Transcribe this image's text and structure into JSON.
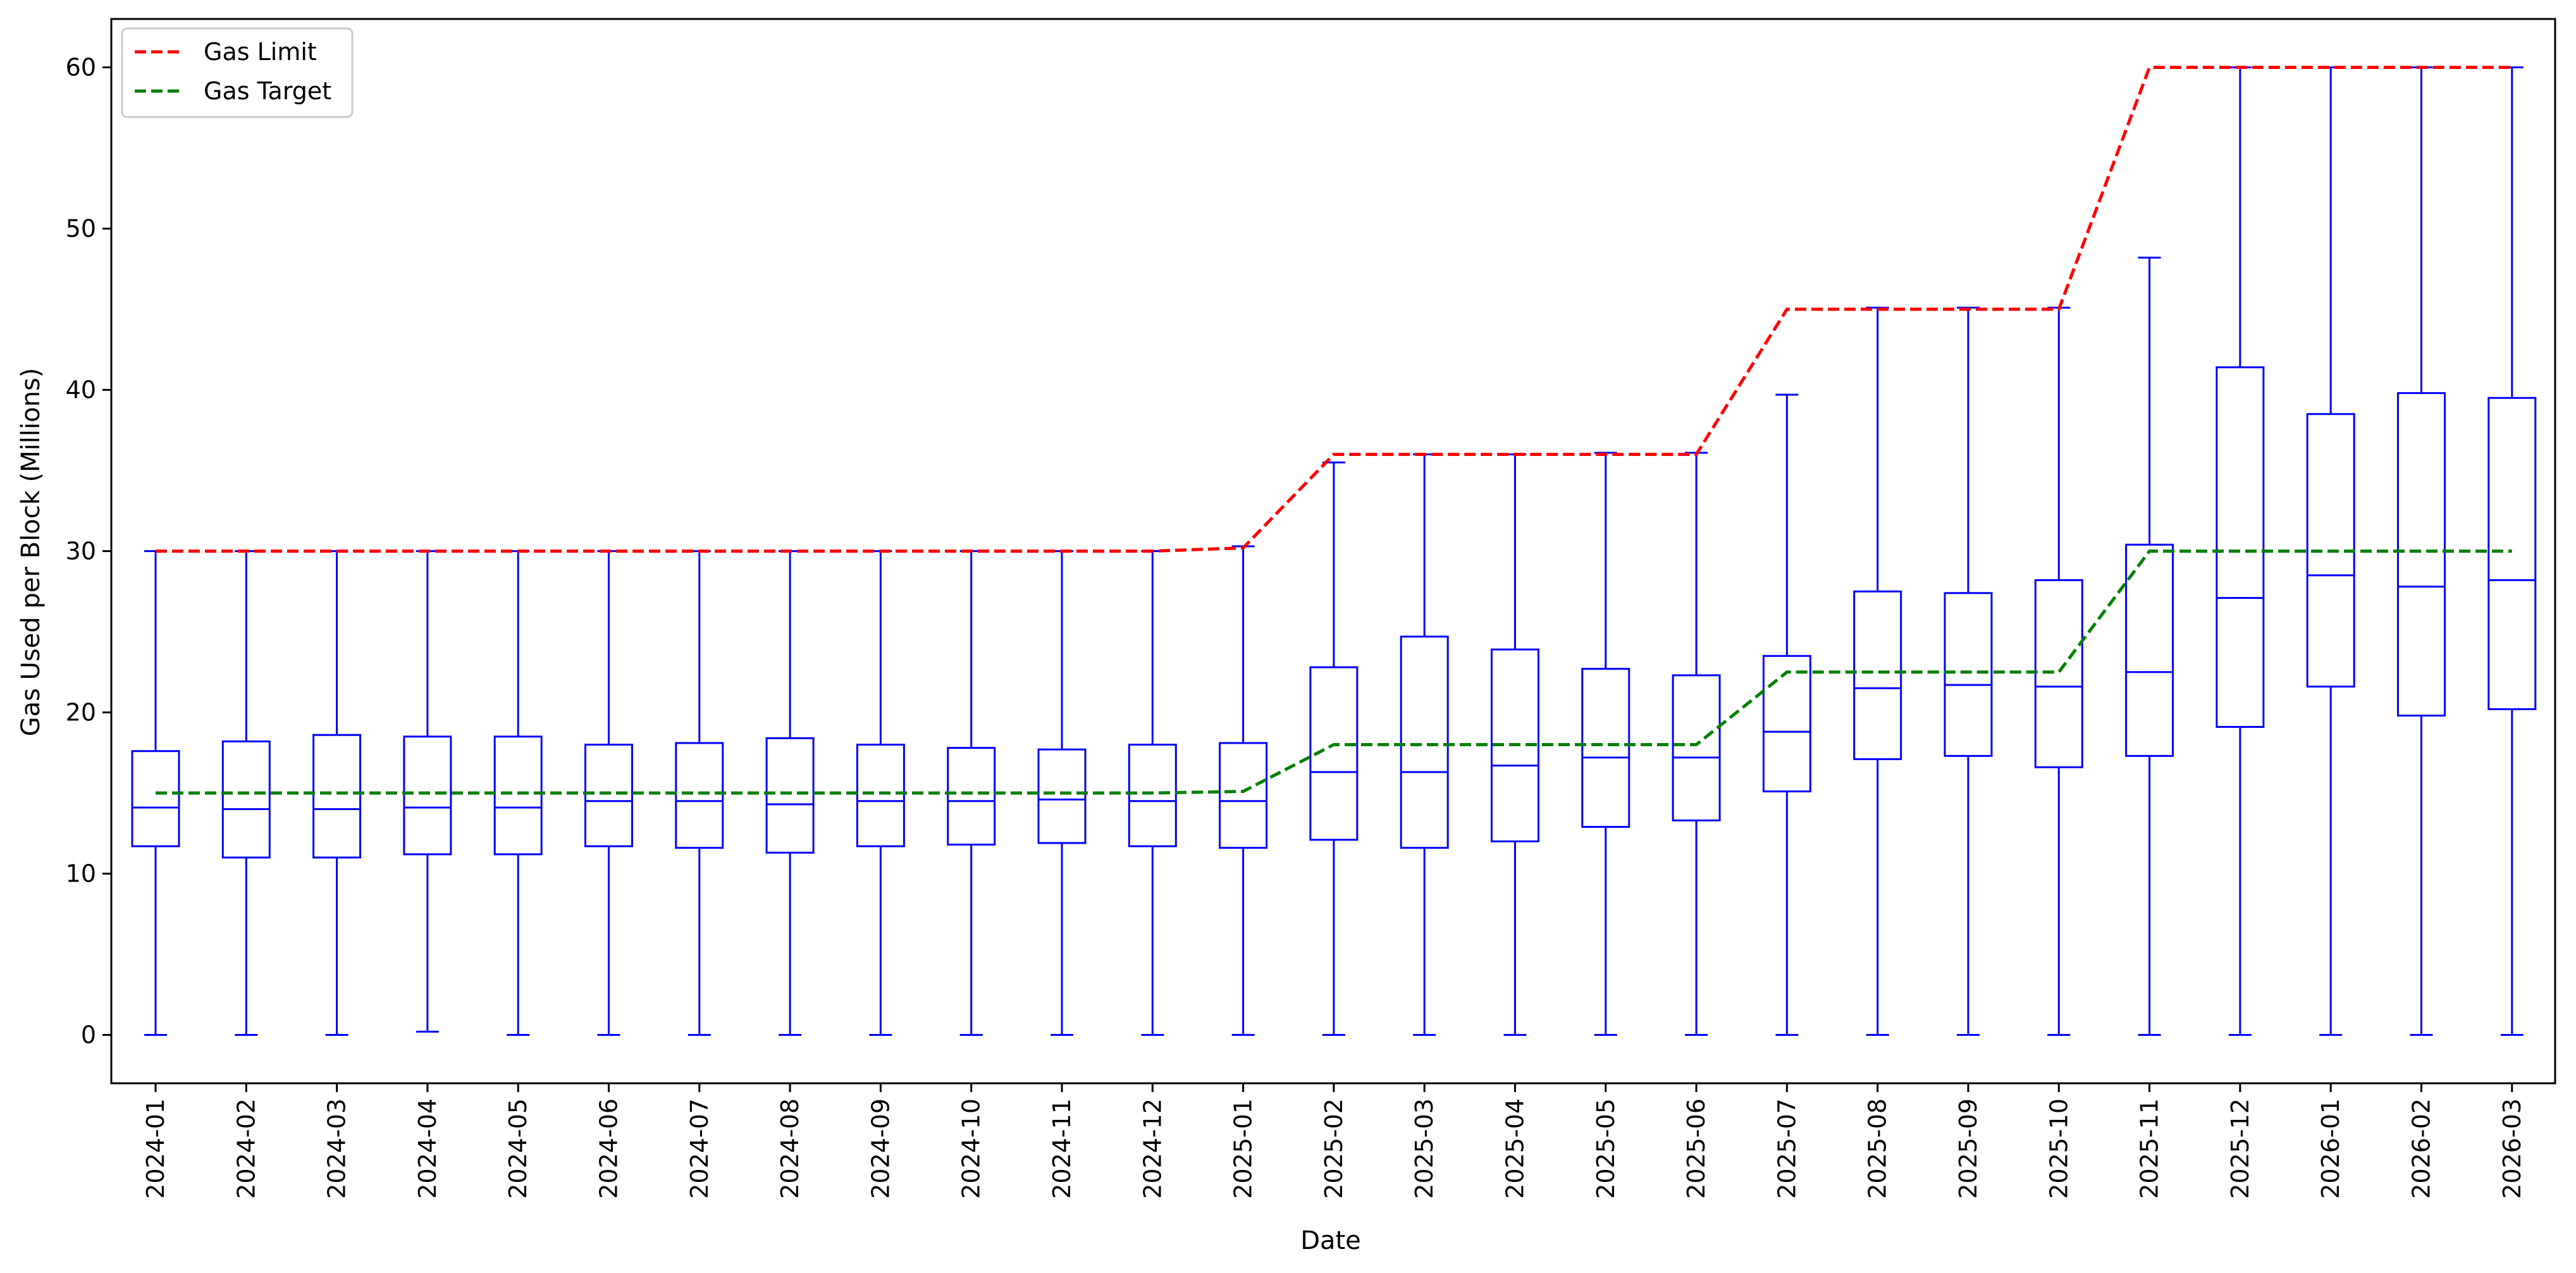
{
  "chart_data": {
    "type": "box",
    "xlabel": "Date",
    "ylabel": "Gas Used per Block (Millions)",
    "ylim": [
      -3,
      63
    ],
    "yticks": [
      0,
      10,
      20,
      30,
      40,
      50,
      60
    ],
    "categories": [
      "2024-01",
      "2024-02",
      "2024-03",
      "2024-04",
      "2024-05",
      "2024-06",
      "2024-07",
      "2024-08",
      "2024-09",
      "2024-10",
      "2024-11",
      "2024-12",
      "2025-01",
      "2025-02",
      "2025-03",
      "2025-04",
      "2025-05",
      "2025-06",
      "2025-07",
      "2025-08",
      "2025-09",
      "2025-10",
      "2025-11",
      "2025-12",
      "2026-01",
      "2026-02",
      "2026-03"
    ],
    "boxes": [
      {
        "whislo": 0,
        "q1": 11.7,
        "med": 14.1,
        "q3": 17.6,
        "whishi": 30.0
      },
      {
        "whislo": 0,
        "q1": 11.0,
        "med": 14.0,
        "q3": 18.2,
        "whishi": 30.0
      },
      {
        "whislo": 0,
        "q1": 11.0,
        "med": 14.0,
        "q3": 18.6,
        "whishi": 30.0
      },
      {
        "whislo": 0.2,
        "q1": 11.2,
        "med": 14.1,
        "q3": 18.5,
        "whishi": 30.0
      },
      {
        "whislo": 0,
        "q1": 11.2,
        "med": 14.1,
        "q3": 18.5,
        "whishi": 30.0
      },
      {
        "whislo": 0,
        "q1": 11.7,
        "med": 14.5,
        "q3": 18.0,
        "whishi": 30.0
      },
      {
        "whislo": 0,
        "q1": 11.6,
        "med": 14.5,
        "q3": 18.1,
        "whishi": 30.0
      },
      {
        "whislo": 0,
        "q1": 11.3,
        "med": 14.3,
        "q3": 18.4,
        "whishi": 30.0
      },
      {
        "whislo": 0,
        "q1": 11.7,
        "med": 14.5,
        "q3": 18.0,
        "whishi": 30.0
      },
      {
        "whislo": 0,
        "q1": 11.8,
        "med": 14.5,
        "q3": 17.8,
        "whishi": 30.0
      },
      {
        "whislo": 0,
        "q1": 11.9,
        "med": 14.6,
        "q3": 17.7,
        "whishi": 30.0
      },
      {
        "whislo": 0,
        "q1": 11.7,
        "med": 14.5,
        "q3": 18.0,
        "whishi": 30.0
      },
      {
        "whislo": 0,
        "q1": 11.6,
        "med": 14.5,
        "q3": 18.1,
        "whishi": 30.3
      },
      {
        "whislo": 0,
        "q1": 12.1,
        "med": 16.3,
        "q3": 22.8,
        "whishi": 35.5
      },
      {
        "whislo": 0,
        "q1": 11.6,
        "med": 16.3,
        "q3": 24.7,
        "whishi": 36.0
      },
      {
        "whislo": 0,
        "q1": 12.0,
        "med": 16.7,
        "q3": 23.9,
        "whishi": 36.0
      },
      {
        "whislo": 0,
        "q1": 12.9,
        "med": 17.2,
        "q3": 22.7,
        "whishi": 36.1
      },
      {
        "whislo": 0,
        "q1": 13.3,
        "med": 17.2,
        "q3": 22.3,
        "whishi": 36.1
      },
      {
        "whislo": 0,
        "q1": 15.1,
        "med": 18.8,
        "q3": 23.5,
        "whishi": 39.7
      },
      {
        "whislo": 0,
        "q1": 17.1,
        "med": 21.5,
        "q3": 27.5,
        "whishi": 45.1
      },
      {
        "whislo": 0,
        "q1": 17.3,
        "med": 21.7,
        "q3": 27.4,
        "whishi": 45.1
      },
      {
        "whislo": 0,
        "q1": 16.6,
        "med": 21.6,
        "q3": 28.2,
        "whishi": 45.1
      },
      {
        "whislo": 0,
        "q1": 17.3,
        "med": 22.5,
        "q3": 30.4,
        "whishi": 48.2
      },
      {
        "whislo": 0,
        "q1": 19.1,
        "med": 27.1,
        "q3": 41.4,
        "whishi": 60.0
      },
      {
        "whislo": 0,
        "q1": 21.6,
        "med": 28.5,
        "q3": 38.5,
        "whishi": 60.0
      },
      {
        "whislo": 0,
        "q1": 19.8,
        "med": 27.8,
        "q3": 39.8,
        "whishi": 60.0
      },
      {
        "whislo": 0,
        "q1": 20.2,
        "med": 28.2,
        "q3": 39.5,
        "whishi": 60.0
      }
    ],
    "series": [
      {
        "name": "Gas Limit",
        "color": "#ff0000",
        "style": "dashed",
        "values": [
          30,
          30,
          30,
          30,
          30,
          30,
          30,
          30,
          30,
          30,
          30,
          30,
          30.2,
          36,
          36,
          36,
          36,
          36,
          45,
          45,
          45,
          45,
          60,
          60,
          60,
          60,
          60
        ]
      },
      {
        "name": "Gas Target",
        "color": "#008000",
        "style": "dashed",
        "values": [
          15,
          15,
          15,
          15,
          15,
          15,
          15,
          15,
          15,
          15,
          15,
          15,
          15.1,
          18,
          18,
          18,
          18,
          18,
          22.5,
          22.5,
          22.5,
          22.5,
          30,
          30,
          30,
          30,
          30
        ]
      }
    ],
    "box_color": "#0000ff",
    "legend_position": "upper-left",
    "grid": false
  }
}
